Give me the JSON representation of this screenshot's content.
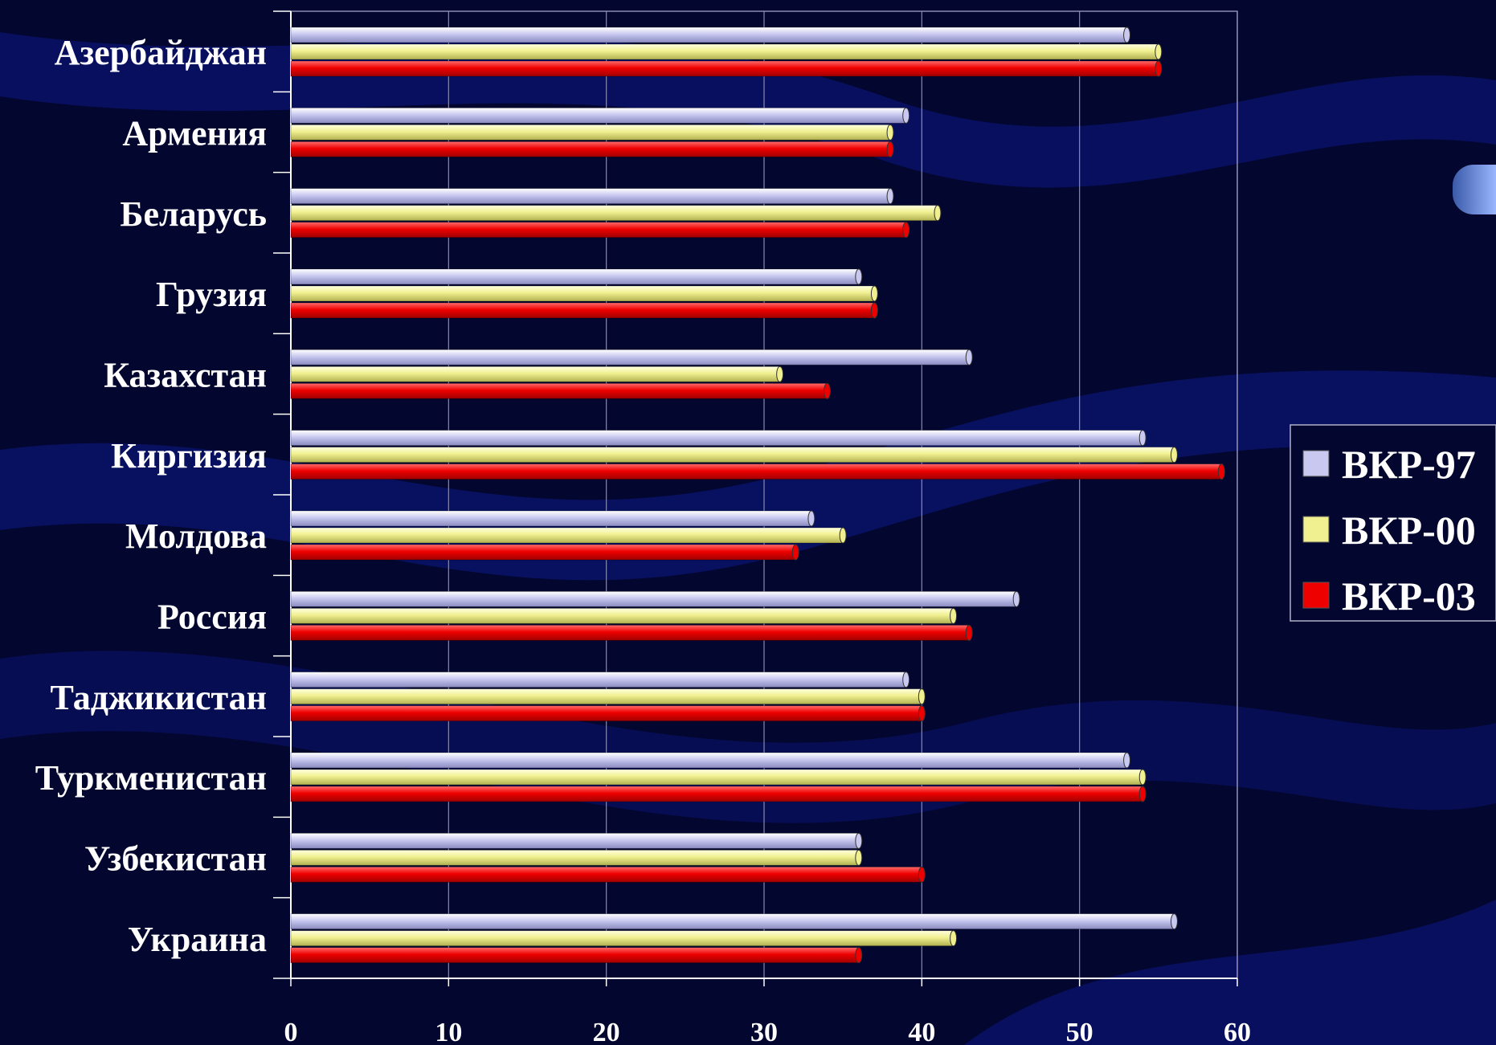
{
  "chart_data": {
    "type": "bar",
    "orientation": "horizontal",
    "categories": [
      "Азербайджан",
      "Армения",
      "Беларусь",
      "Грузия",
      "Казахстан",
      "Киргизия",
      "Молдова",
      "Россия",
      "Таджикистан",
      "Туркменистан",
      "Узбекистан",
      "Украина"
    ],
    "series": [
      {
        "name": "ВКР-97",
        "color": "#c8c8f0",
        "values": [
          53,
          39,
          38,
          36,
          43,
          54,
          33,
          46,
          39,
          53,
          36,
          56
        ]
      },
      {
        "name": "ВКР-00",
        "color": "#f0f090",
        "values": [
          55,
          38,
          41,
          37,
          31,
          56,
          35,
          42,
          40,
          54,
          36,
          42
        ]
      },
      {
        "name": "ВКР-03",
        "color": "#ee0000",
        "values": [
          55,
          38,
          39,
          37,
          34,
          59,
          32,
          43,
          40,
          54,
          40,
          36
        ]
      }
    ],
    "xlim": [
      0,
      60
    ],
    "xticks": [
      "0",
      "10",
      "20",
      "30",
      "40",
      "50",
      "60"
    ],
    "grid": true,
    "legend_position": "right"
  }
}
